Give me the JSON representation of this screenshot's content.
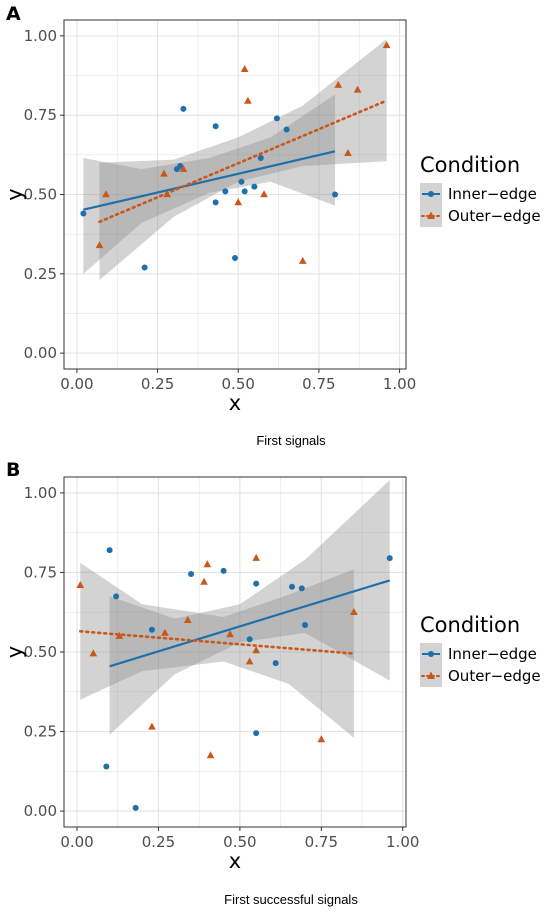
{
  "colors": {
    "inner": "#1f6fab",
    "outer": "#c8581a",
    "band": "#8c8c8c",
    "grid": "#e3e3e3"
  },
  "legend": {
    "title": "Condition",
    "items": [
      {
        "label": "Inner−edge",
        "icon": "circle-marker-solid-line"
      },
      {
        "label": "Outer−edge",
        "icon": "triangle-marker-dotted-line"
      }
    ]
  },
  "chart_data": [
    {
      "panel": "A",
      "type": "scatter",
      "caption": "First signals",
      "xlabel": "x",
      "ylabel": "y",
      "xlim": [
        -0.04,
        1.02
      ],
      "ylim": [
        -0.05,
        1.05
      ],
      "xticks": [
        "0.00",
        "0.25",
        "0.50",
        "0.75",
        "1.00"
      ],
      "yticks": [
        "0.00",
        "0.25",
        "0.50",
        "0.75",
        "1.00"
      ],
      "grid": true,
      "legend_position": "right",
      "series": [
        {
          "name": "Inner−edge",
          "marker": "circle",
          "line": "solid",
          "points": [
            [
              0.02,
              0.44
            ],
            [
              0.21,
              0.27
            ],
            [
              0.31,
              0.58
            ],
            [
              0.32,
              0.59
            ],
            [
              0.33,
              0.77
            ],
            [
              0.43,
              0.715
            ],
            [
              0.43,
              0.475
            ],
            [
              0.46,
              0.51
            ],
            [
              0.49,
              0.3
            ],
            [
              0.51,
              0.54
            ],
            [
              0.52,
              0.51
            ],
            [
              0.55,
              0.525
            ],
            [
              0.57,
              0.615
            ],
            [
              0.62,
              0.74
            ],
            [
              0.65,
              0.705
            ],
            [
              0.8,
              0.5
            ]
          ],
          "fit": {
            "x": [
              0.02,
              0.8
            ],
            "y": [
              0.452,
              0.636
            ]
          },
          "ci": {
            "x": [
              0.02,
              0.2,
              0.41,
              0.6,
              0.8
            ],
            "lower": [
              0.25,
              0.41,
              0.505,
              0.54,
              0.465
            ],
            "upper": [
              0.615,
              0.58,
              0.615,
              0.68,
              0.815
            ]
          }
        },
        {
          "name": "Outer−edge",
          "marker": "triangle",
          "line": "dotted",
          "points": [
            [
              0.07,
              0.34
            ],
            [
              0.09,
              0.5
            ],
            [
              0.27,
              0.565
            ],
            [
              0.28,
              0.5
            ],
            [
              0.33,
              0.58
            ],
            [
              0.5,
              0.475
            ],
            [
              0.52,
              0.895
            ],
            [
              0.53,
              0.795
            ],
            [
              0.58,
              0.5
            ],
            [
              0.7,
              0.29
            ],
            [
              0.81,
              0.845
            ],
            [
              0.84,
              0.63
            ],
            [
              0.87,
              0.83
            ],
            [
              0.96,
              0.97
            ]
          ],
          "fit": {
            "x": [
              0.07,
              0.96
            ],
            "y": [
              0.414,
              0.796
            ]
          },
          "ci": {
            "x": [
              0.07,
              0.3,
              0.5,
              0.7,
              0.96
            ],
            "lower": [
              0.23,
              0.43,
              0.54,
              0.59,
              0.605
            ],
            "upper": [
              0.6,
              0.61,
              0.68,
              0.78,
              0.99
            ]
          }
        }
      ]
    },
    {
      "panel": "B",
      "type": "scatter",
      "caption": "First successful signals",
      "xlabel": "x",
      "ylabel": "y",
      "xlim": [
        -0.04,
        1.01
      ],
      "ylim": [
        -0.05,
        1.05
      ],
      "xticks": [
        "0.00",
        "0.25",
        "0.50",
        "0.75",
        "1.00"
      ],
      "yticks": [
        "0.00",
        "0.25",
        "0.50",
        "0.75",
        "1.00"
      ],
      "grid": true,
      "legend_position": "right",
      "series": [
        {
          "name": "Inner−edge",
          "marker": "circle",
          "line": "solid",
          "points": [
            [
              0.09,
              0.14
            ],
            [
              0.1,
              0.82
            ],
            [
              0.12,
              0.675
            ],
            [
              0.18,
              0.01
            ],
            [
              0.23,
              0.57
            ],
            [
              0.35,
              0.745
            ],
            [
              0.45,
              0.755
            ],
            [
              0.53,
              0.54
            ],
            [
              0.55,
              0.715
            ],
            [
              0.55,
              0.245
            ],
            [
              0.61,
              0.465
            ],
            [
              0.66,
              0.705
            ],
            [
              0.69,
              0.7
            ],
            [
              0.7,
              0.585
            ],
            [
              0.96,
              0.795
            ]
          ],
          "fit": {
            "x": [
              0.1,
              0.96
            ],
            "y": [
              0.455,
              0.725
            ]
          },
          "ci": {
            "x": [
              0.1,
              0.3,
              0.5,
              0.7,
              0.96
            ],
            "lower": [
              0.24,
              0.43,
              0.53,
              0.56,
              0.41
            ],
            "upper": [
              0.675,
              0.605,
              0.65,
              0.79,
              1.04
            ]
          }
        },
        {
          "name": "Outer−edge",
          "marker": "triangle",
          "line": "dotted",
          "points": [
            [
              0.01,
              0.71
            ],
            [
              0.05,
              0.495
            ],
            [
              0.13,
              0.55
            ],
            [
              0.23,
              0.265
            ],
            [
              0.27,
              0.56
            ],
            [
              0.34,
              0.6
            ],
            [
              0.39,
              0.72
            ],
            [
              0.4,
              0.775
            ],
            [
              0.41,
              0.175
            ],
            [
              0.47,
              0.555
            ],
            [
              0.53,
              0.47
            ],
            [
              0.55,
              0.795
            ],
            [
              0.55,
              0.505
            ],
            [
              0.75,
              0.225
            ],
            [
              0.85,
              0.625
            ]
          ],
          "fit": {
            "x": [
              0.01,
              0.85
            ],
            "y": [
              0.565,
              0.495
            ]
          },
          "ci": {
            "x": [
              0.01,
              0.2,
              0.45,
              0.65,
              0.85
            ],
            "lower": [
              0.35,
              0.44,
              0.47,
              0.4,
              0.23
            ],
            "upper": [
              0.78,
              0.65,
              0.61,
              0.68,
              0.76
            ]
          }
        }
      ]
    }
  ]
}
